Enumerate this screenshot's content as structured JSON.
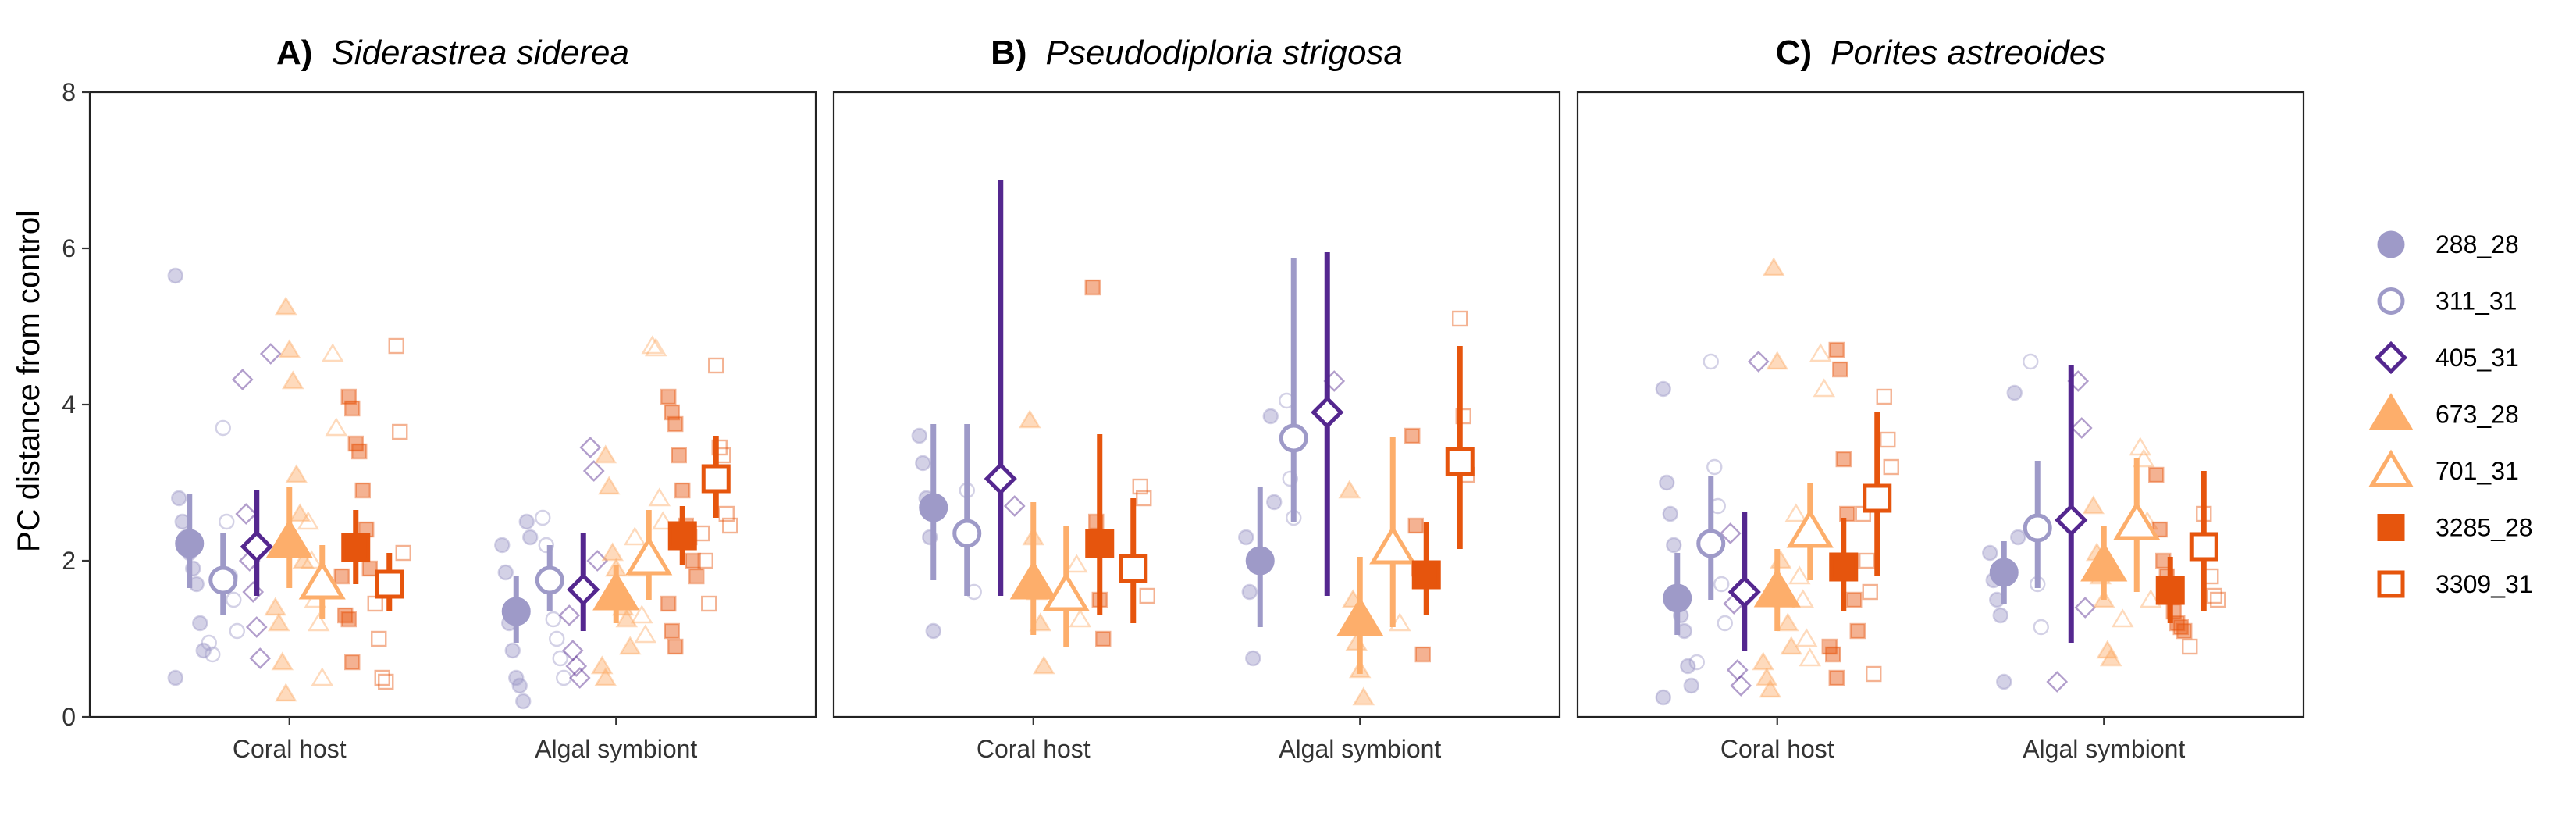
{
  "chart_data": {
    "type": "scatter",
    "ylabel": "PC distance from control",
    "ylim": [
      0,
      8
    ],
    "yticks": [
      0,
      2,
      4,
      6,
      8
    ],
    "grid": false,
    "legend_position": "right",
    "categories": [
      "Coral host",
      "Algal symbiont"
    ],
    "treatments": [
      {
        "name": "288_28",
        "color": "#9e9ac8",
        "shape": "circle",
        "filled": true
      },
      {
        "name": "311_31",
        "color": "#9e9ac8",
        "shape": "circle",
        "filled": false
      },
      {
        "name": "405_31",
        "color": "#54278f",
        "shape": "diamond",
        "filled": false
      },
      {
        "name": "673_28",
        "color": "#fdae6b",
        "shape": "triangle",
        "filled": true
      },
      {
        "name": "701_31",
        "color": "#fdae6b",
        "shape": "triangle",
        "filled": false
      },
      {
        "name": "3285_28",
        "color": "#e6550d",
        "shape": "square",
        "filled": true
      },
      {
        "name": "3309_31",
        "color": "#e6550d",
        "shape": "square",
        "filled": false
      }
    ],
    "panels": [
      {
        "letter": "A)",
        "species": "Siderastrea siderea",
        "summary": [
          [
            {
              "mean": 2.22,
              "lo": 1.65,
              "hi": 2.85
            },
            {
              "mean": 1.75,
              "lo": 1.3,
              "hi": 2.35
            },
            {
              "mean": 2.18,
              "lo": 1.55,
              "hi": 2.9
            },
            {
              "mean": 2.25,
              "lo": 1.65,
              "hi": 2.95
            },
            {
              "mean": 1.72,
              "lo": 1.25,
              "hi": 2.2
            },
            {
              "mean": 2.17,
              "lo": 1.7,
              "hi": 2.65
            },
            {
              "mean": 1.7,
              "lo": 1.35,
              "hi": 2.1
            }
          ],
          [
            {
              "mean": 1.35,
              "lo": 0.95,
              "hi": 1.8
            },
            {
              "mean": 1.75,
              "lo": 1.35,
              "hi": 2.2
            },
            {
              "mean": 1.63,
              "lo": 1.1,
              "hi": 2.35
            },
            {
              "mean": 1.58,
              "lo": 1.2,
              "hi": 1.95
            },
            {
              "mean": 2.03,
              "lo": 1.5,
              "hi": 2.65
            },
            {
              "mean": 2.32,
              "lo": 1.95,
              "hi": 2.7
            },
            {
              "mean": 3.05,
              "lo": 2.55,
              "hi": 3.6
            }
          ]
        ],
        "raw": [
          [
            [
              5.65,
              2.8,
              2.5,
              2.3,
              2.1,
              1.9,
              1.7,
              1.2,
              0.85,
              0.5
            ],
            [
              3.7,
              2.5,
              1.8,
              1.5,
              1.1,
              0.95,
              0.8
            ],
            [
              4.65,
              4.32,
              2.6,
              2.0,
              1.6,
              1.15,
              0.75
            ],
            [
              5.25,
              4.7,
              4.3,
              3.1,
              2.6,
              2.0,
              1.4,
              1.2,
              0.7,
              0.3
            ],
            [
              4.65,
              3.7,
              2.5,
              2.0,
              1.5,
              1.2,
              0.5
            ],
            [
              4.1,
              3.95,
              3.5,
              3.4,
              2.9,
              2.4,
              1.9,
              1.8,
              1.3,
              1.25,
              0.7
            ],
            [
              4.75,
              3.65,
              2.1,
              1.45,
              1.0,
              0.5,
              0.45
            ]
          ],
          [
            [
              2.5,
              2.3,
              2.2,
              1.85,
              1.2,
              0.85,
              0.5,
              0.4,
              0.2
            ],
            [
              2.55,
              2.2,
              1.7,
              1.25,
              1.0,
              0.75,
              0.5
            ],
            [
              3.45,
              3.15,
              2.0,
              1.3,
              0.85,
              0.65,
              0.5
            ],
            [
              3.35,
              2.95,
              2.1,
              1.9,
              1.6,
              1.4,
              1.25,
              0.9,
              0.65,
              0.5
            ],
            [
              4.75,
              4.72,
              2.8,
              2.5,
              2.3,
              1.9,
              1.3,
              1.05
            ],
            [
              4.1,
              3.9,
              3.75,
              3.35,
              2.9,
              2.45,
              2.3,
              2.0,
              1.8,
              1.45,
              1.1,
              0.9
            ],
            [
              4.5,
              3.45,
              3.35,
              2.6,
              2.45,
              2.35,
              2.0,
              1.45
            ]
          ]
        ]
      },
      {
        "letter": "B)",
        "species": "Pseudodiploria strigosa",
        "summary": [
          [
            {
              "mean": 2.68,
              "lo": 1.75,
              "hi": 3.75
            },
            {
              "mean": 2.35,
              "lo": 1.55,
              "hi": 3.75
            },
            {
              "mean": 3.05,
              "lo": 1.55,
              "hi": 6.88
            },
            {
              "mean": 1.72,
              "lo": 1.05,
              "hi": 2.75
            },
            {
              "mean": 1.57,
              "lo": 0.9,
              "hi": 2.45
            },
            {
              "mean": 2.22,
              "lo": 1.3,
              "hi": 3.62
            },
            {
              "mean": 1.9,
              "lo": 1.2,
              "hi": 2.8
            }
          ],
          [
            {
              "mean": 2.0,
              "lo": 1.15,
              "hi": 2.95
            },
            {
              "mean": 3.57,
              "lo": 2.5,
              "hi": 5.88
            },
            {
              "mean": 3.9,
              "lo": 1.55,
              "hi": 5.95
            },
            {
              "mean": 1.25,
              "lo": 0.55,
              "hi": 2.05
            },
            {
              "mean": 2.17,
              "lo": 1.15,
              "hi": 3.58
            },
            {
              "mean": 1.82,
              "lo": 1.3,
              "hi": 2.5
            },
            {
              "mean": 3.27,
              "lo": 2.15,
              "hi": 4.75
            }
          ]
        ],
        "raw": [
          [
            [
              3.6,
              3.25,
              2.8,
              2.3,
              1.1
            ],
            [
              2.9,
              2.3,
              1.6
            ],
            [
              2.7
            ],
            [
              3.8,
              2.3,
              1.6,
              1.2,
              0.65
            ],
            [
              1.95,
              1.25
            ],
            [
              5.5,
              2.5,
              1.5,
              1.0
            ],
            [
              2.95,
              2.8,
              1.55
            ]
          ],
          [
            [
              3.85,
              2.75,
              2.3,
              1.6,
              0.75
            ],
            [
              4.05,
              3.05,
              2.55
            ],
            [
              4.3
            ],
            [
              2.9,
              1.5,
              0.95,
              0.6,
              0.25
            ],
            [
              2.15,
              1.2
            ],
            [
              3.6,
              2.45,
              1.9,
              0.8
            ],
            [
              5.1,
              3.85,
              3.1
            ]
          ]
        ]
      },
      {
        "letter": "C)",
        "species": "Porites astreoides",
        "summary": [
          [
            {
              "mean": 1.52,
              "lo": 1.05,
              "hi": 2.1
            },
            {
              "mean": 2.22,
              "lo": 1.5,
              "hi": 3.08
            },
            {
              "mean": 1.6,
              "lo": 0.85,
              "hi": 2.62
            },
            {
              "mean": 1.62,
              "lo": 1.1,
              "hi": 2.15
            },
            {
              "mean": 2.38,
              "lo": 1.75,
              "hi": 3.0
            },
            {
              "mean": 1.92,
              "lo": 1.35,
              "hi": 2.55
            },
            {
              "mean": 2.8,
              "lo": 1.8,
              "hi": 3.9
            }
          ],
          [
            {
              "mean": 1.85,
              "lo": 1.45,
              "hi": 2.25
            },
            {
              "mean": 2.42,
              "lo": 1.65,
              "hi": 3.28
            },
            {
              "mean": 2.52,
              "lo": 0.95,
              "hi": 4.5
            },
            {
              "mean": 1.95,
              "lo": 1.5,
              "hi": 2.45
            },
            {
              "mean": 2.48,
              "lo": 1.6,
              "hi": 3.32
            },
            {
              "mean": 1.62,
              "lo": 1.2,
              "hi": 2.05
            },
            {
              "mean": 2.18,
              "lo": 1.35,
              "hi": 3.15
            }
          ]
        ],
        "raw": [
          [
            [
              4.2,
              3.0,
              2.6,
              2.2,
              1.6,
              1.3,
              1.1,
              0.65,
              0.4,
              0.25
            ],
            [
              4.55,
              3.2,
              2.7,
              1.7,
              1.2,
              0.7
            ],
            [
              4.55,
              2.35,
              1.45,
              0.6,
              0.4
            ],
            [
              5.75,
              4.55,
              2.0,
              1.5,
              1.2,
              0.9,
              0.7,
              0.5,
              0.35
            ],
            [
              4.65,
              4.2,
              2.6,
              1.8,
              1.5,
              1.0,
              0.75
            ],
            [
              4.7,
              4.45,
              3.3,
              2.6,
              2.0,
              1.5,
              1.1,
              0.9,
              0.8,
              0.5
            ],
            [
              4.1,
              3.55,
              3.2,
              2.6,
              2.0,
              1.6,
              0.55
            ]
          ],
          [
            [
              4.15,
              2.3,
              2.1,
              1.75,
              1.5,
              1.3,
              0.45
            ],
            [
              4.55,
              2.45,
              1.7,
              1.15
            ],
            [
              4.3,
              3.7,
              1.4,
              0.45
            ],
            [
              2.7,
              2.1,
              1.8,
              1.5,
              0.85,
              0.75
            ],
            [
              3.45,
              3.3,
              2.5,
              1.5,
              1.25
            ],
            [
              3.1,
              2.4,
              2.0,
              1.8,
              1.55,
              1.35,
              1.2,
              1.15,
              1.1
            ],
            [
              2.6,
              2.25,
              1.8,
              1.55,
              1.5,
              0.9
            ]
          ]
        ]
      }
    ]
  }
}
